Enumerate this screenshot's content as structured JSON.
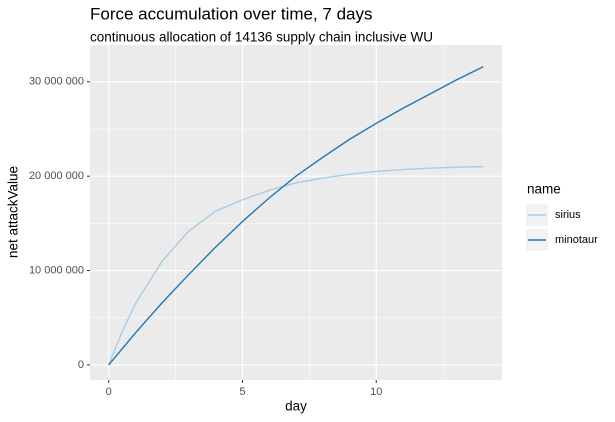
{
  "chart_data": {
    "type": "line",
    "title": "Force accumulation over time, 7 days",
    "subtitle": "continuous allocation of 14136 supply chain inclusive WU",
    "x_label": "day",
    "y_label": "net attackValue",
    "x": [
      0,
      0.5,
      1,
      2,
      3,
      4,
      5,
      6,
      7,
      8,
      9,
      10,
      11,
      12,
      13,
      14
    ],
    "series": [
      {
        "name": "sirius",
        "color": "#a6cee3",
        "values": [
          0,
          3500000,
          6500000,
          11000000,
          14200000,
          16300000,
          17500000,
          18500000,
          19300000,
          19800000,
          20200000,
          20500000,
          20700000,
          20850000,
          20950000,
          21000000
        ]
      },
      {
        "name": "minotaur",
        "color": "#1f78b4",
        "values": [
          0,
          1700000,
          3400000,
          6600000,
          9600000,
          12500000,
          15200000,
          17700000,
          20000000,
          22000000,
          23900000,
          25600000,
          27200000,
          28700000,
          30200000,
          31600000
        ]
      }
    ],
    "legend_title": "name",
    "legend": "right",
    "xlim": [
      -0.7,
      14.7
    ],
    "xticks": [
      0,
      5,
      10
    ],
    "minor_xticks": [
      2.5,
      7.5,
      12.5
    ],
    "ylim": [
      -1600000,
      33900000
    ],
    "yticks": [
      {
        "value": 0,
        "label": "0"
      },
      {
        "value": 10000000,
        "label": "10 000 000"
      },
      {
        "value": 20000000,
        "label": "20 000 000"
      },
      {
        "value": 30000000,
        "label": "30 000 000"
      }
    ],
    "minor_yticks": [
      5000000,
      15000000,
      25000000
    ],
    "grid": true
  }
}
